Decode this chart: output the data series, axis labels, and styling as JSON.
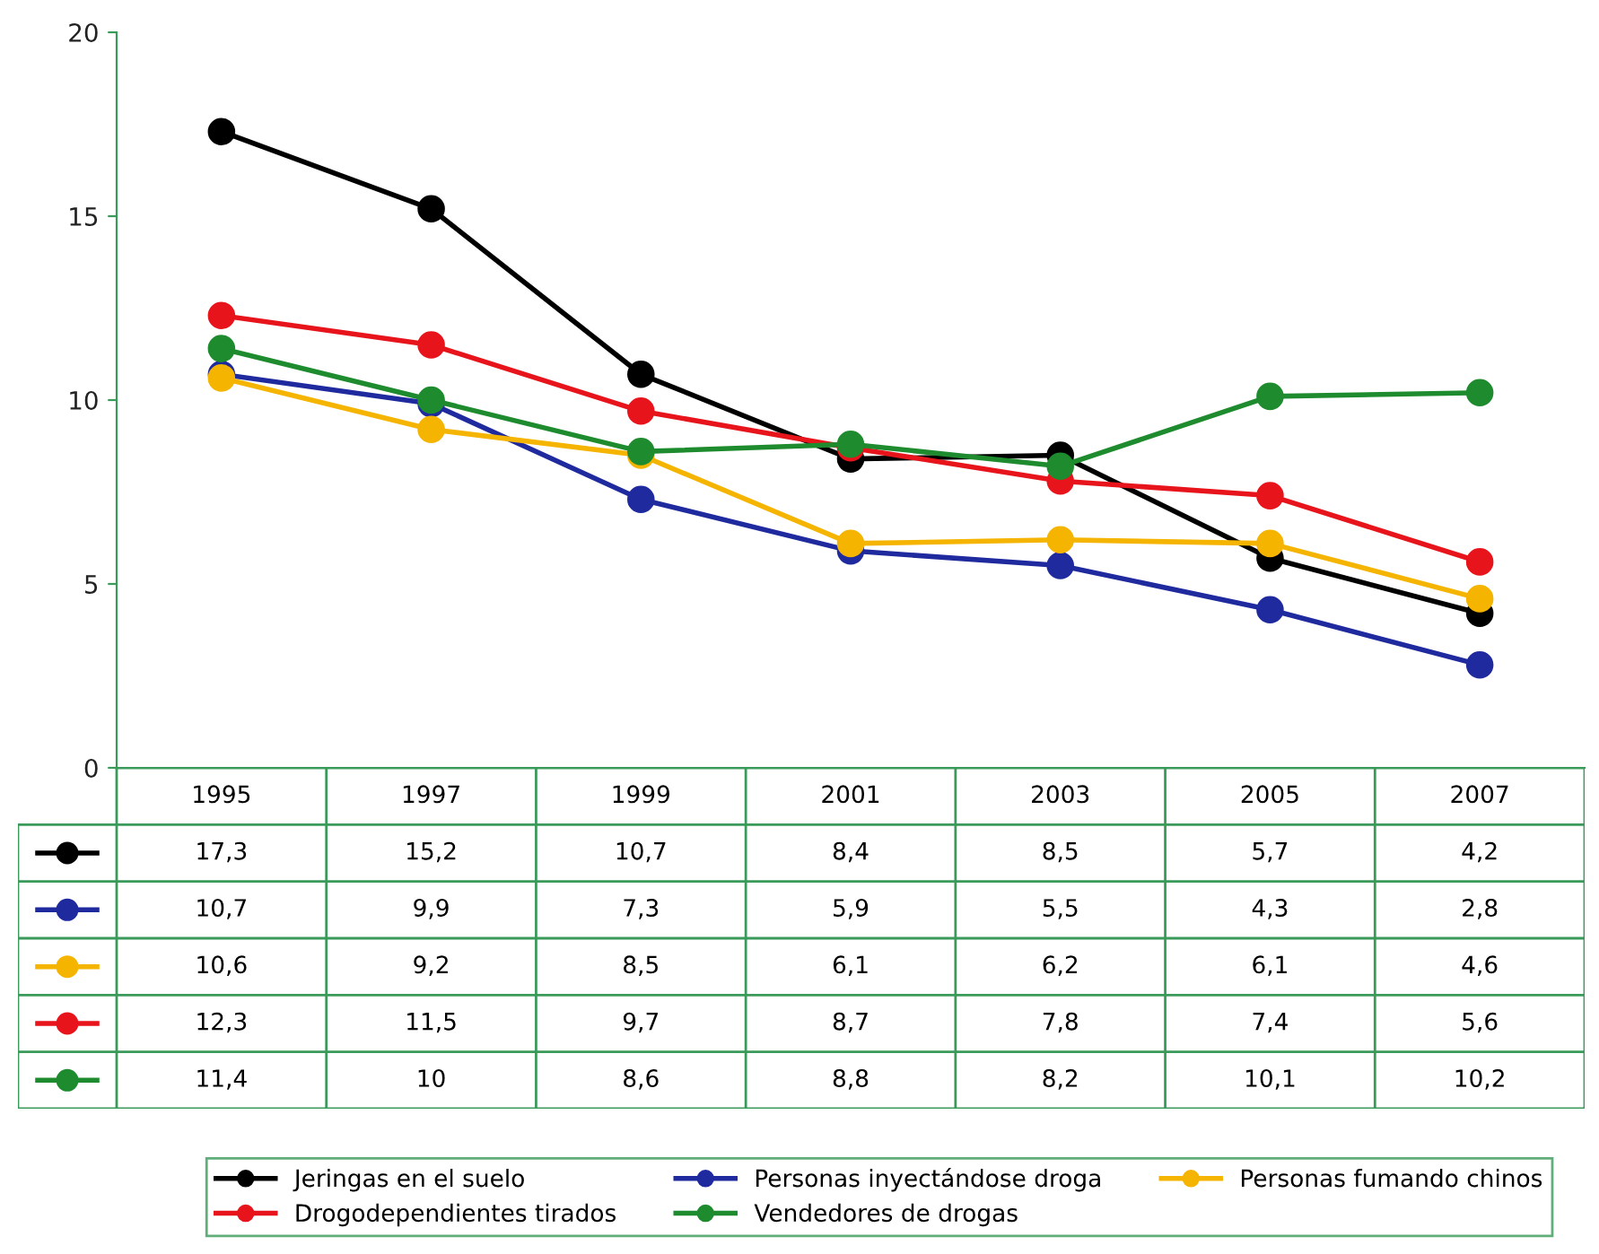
{
  "chart_data": {
    "type": "line",
    "categories": [
      "1995",
      "1997",
      "1999",
      "2001",
      "2003",
      "2005",
      "2007"
    ],
    "ylim": [
      0,
      20
    ],
    "yticks": [
      0,
      5,
      10,
      15,
      20
    ],
    "grid": false,
    "legend": "bottom",
    "marker": "circle",
    "line_style": "solid",
    "series": [
      {
        "name": "Jeringas en el suelo",
        "color": "#000000",
        "values": [
          17.3,
          15.2,
          10.7,
          8.4,
          8.5,
          5.7,
          4.2
        ],
        "value_labels": [
          "17,3",
          "15,2",
          "10,7",
          "8,4",
          "8,5",
          "5,7",
          "4,2"
        ]
      },
      {
        "name": "Personas inyectándose droga",
        "color": "#1f2a9e",
        "values": [
          10.7,
          9.9,
          7.3,
          5.9,
          5.5,
          4.3,
          2.8
        ],
        "value_labels": [
          "10,7",
          "9,9",
          "7,3",
          "5,9",
          "5,5",
          "4,3",
          "2,8"
        ]
      },
      {
        "name": "Personas fumando chinos",
        "color": "#f5b400",
        "values": [
          10.6,
          9.2,
          8.5,
          6.1,
          6.2,
          6.1,
          4.6
        ],
        "value_labels": [
          "10,6",
          "9,2",
          "8,5",
          "6,1",
          "6,2",
          "6,1",
          "4,6"
        ]
      },
      {
        "name": "Drogodependientes tirados",
        "color": "#e8141c",
        "values": [
          12.3,
          11.5,
          9.7,
          8.7,
          7.8,
          7.4,
          5.6
        ],
        "value_labels": [
          "12,3",
          "11,5",
          "9,7",
          "8,7",
          "7,8",
          "7,4",
          "5,6"
        ]
      },
      {
        "name": "Vendedores de drogas",
        "color": "#1e8c2e",
        "values": [
          11.4,
          10,
          8.6,
          8.8,
          8.2,
          10.1,
          10.2
        ],
        "value_labels": [
          "11,4",
          "10",
          "8,6",
          "8,8",
          "8,2",
          "10,1",
          "10,2"
        ]
      }
    ]
  }
}
